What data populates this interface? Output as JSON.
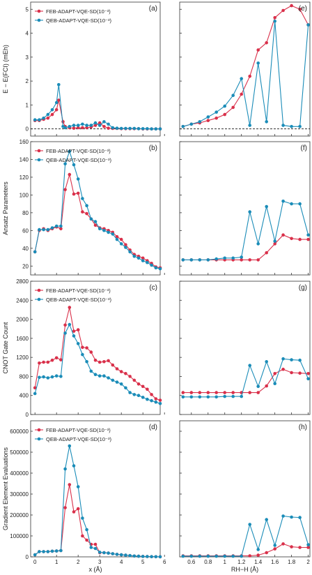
{
  "colors": {
    "feb": "#d9304a",
    "qeb": "#1a8cb8"
  },
  "legend": {
    "feb": "FEB-ADAPT-VQE-SD(10⁻³)",
    "qeb": "QEB-ADAPT-VQE-SD(10⁻³)"
  },
  "labels": {
    "ylabels": [
      "E − E(FCI) (mEh)",
      "Ansatz Parameters",
      "CNOT Gate Count",
      "Gradient Element Evaluations"
    ],
    "xlabel_left": "x (Å)",
    "xlabel_right": "RH−H (Å)",
    "panels_left": [
      "(a)",
      "(b)",
      "(c)",
      "(d)"
    ],
    "panels_right": [
      "(e)",
      "(f)",
      "(g)",
      "(h)"
    ]
  },
  "chart_data": [
    {
      "panel": "(a)",
      "type": "line",
      "xlim": [
        -0.2,
        5.8
      ],
      "ylim": [
        -0.3,
        5.3
      ],
      "yticks": [
        0,
        1,
        2,
        3,
        4,
        5
      ],
      "xticks": [
        0,
        1,
        2,
        3,
        4,
        5,
        6
      ],
      "reference_line": 0,
      "series": [
        {
          "key": "feb",
          "x": [
            0,
            0.2,
            0.4,
            0.6,
            0.8,
            1.0,
            1.1,
            1.3,
            1.4,
            1.6,
            1.8,
            2.0,
            2.2,
            2.4,
            2.6,
            2.8,
            3.0,
            3.2,
            3.4,
            3.6,
            3.8,
            4.0,
            4.2,
            4.4,
            4.6,
            4.8,
            5.0,
            5.2,
            5.4,
            5.6,
            5.8
          ],
          "y": [
            0.35,
            0.35,
            0.4,
            0.45,
            0.6,
            0.8,
            1.2,
            0.3,
            0.1,
            0.05,
            0.03,
            0.05,
            0.05,
            0.05,
            0.08,
            0.15,
            0.25,
            0.1,
            0.03,
            0.02,
            0.02,
            0.01,
            0.01,
            0.01,
            0.01,
            0.01,
            0.0,
            0.0,
            0.0,
            0.0,
            0.0
          ]
        },
        {
          "key": "qeb",
          "x": [
            0,
            0.2,
            0.4,
            0.6,
            0.8,
            1.0,
            1.1,
            1.3,
            1.4,
            1.6,
            1.8,
            2.0,
            2.2,
            2.4,
            2.6,
            2.8,
            3.0,
            3.2,
            3.4,
            3.6,
            3.8,
            4.0,
            4.2,
            4.4,
            4.6,
            4.8,
            5.0,
            5.2,
            5.4,
            5.6,
            5.8
          ],
          "y": [
            0.38,
            0.38,
            0.45,
            0.6,
            0.8,
            1.1,
            1.85,
            0.1,
            0.05,
            0.1,
            0.15,
            0.15,
            0.2,
            0.15,
            0.15,
            0.25,
            0.15,
            0.3,
            0.2,
            0.05,
            0.03,
            0.02,
            0.02,
            0.02,
            0.02,
            0.01,
            0.01,
            0.01,
            0.0,
            0.0,
            0.0
          ]
        }
      ]
    },
    {
      "panel": "(e)",
      "type": "line",
      "xlim": [
        0.46,
        2.02
      ],
      "ylim": [
        -0.3,
        5.3
      ],
      "yticks": [
        0,
        1,
        2,
        3,
        4,
        5
      ],
      "xticks": [
        0.6,
        0.8,
        1.0,
        1.2,
        1.4,
        1.6,
        1.8,
        2.0
      ],
      "reference_line": 0,
      "series": [
        {
          "key": "feb",
          "x": [
            0.5,
            0.6,
            0.7,
            0.8,
            0.9,
            1.0,
            1.1,
            1.2,
            1.3,
            1.4,
            1.5,
            1.6,
            1.7,
            1.8,
            1.9,
            2.0
          ],
          "y": [
            0.1,
            0.2,
            0.25,
            0.35,
            0.45,
            0.6,
            0.9,
            1.45,
            2.2,
            3.3,
            3.6,
            4.65,
            4.95,
            5.15,
            5.0,
            4.35
          ]
        },
        {
          "key": "qeb",
          "x": [
            0.5,
            0.6,
            0.7,
            0.8,
            0.9,
            1.0,
            1.1,
            1.2,
            1.3,
            1.4,
            1.5,
            1.6,
            1.7,
            1.8,
            1.9,
            2.0
          ],
          "y": [
            0.1,
            0.2,
            0.3,
            0.5,
            0.7,
            0.95,
            1.4,
            2.1,
            0.15,
            2.75,
            0.3,
            4.5,
            0.15,
            0.1,
            0.1,
            4.35
          ]
        }
      ]
    },
    {
      "panel": "(b)",
      "type": "line",
      "xlim": [
        -0.2,
        5.8
      ],
      "ylim": [
        10,
        160
      ],
      "yticks": [
        20,
        40,
        60,
        80,
        100,
        120,
        140,
        160
      ],
      "xticks": [
        0,
        1,
        2,
        3,
        4,
        5,
        6
      ],
      "series": [
        {
          "key": "feb",
          "x": [
            0,
            0.2,
            0.4,
            0.6,
            0.8,
            1.0,
            1.2,
            1.4,
            1.6,
            1.8,
            2.0,
            2.2,
            2.4,
            2.6,
            2.8,
            3.0,
            3.2,
            3.4,
            3.6,
            3.8,
            4.0,
            4.2,
            4.4,
            4.6,
            4.8,
            5.0,
            5.2,
            5.4,
            5.6,
            5.8
          ],
          "y": [
            36,
            60,
            62,
            60,
            62,
            64,
            62,
            106,
            123,
            101,
            102,
            81,
            79,
            73,
            66,
            63,
            62,
            60,
            58,
            53,
            50,
            44,
            38,
            33,
            31,
            29,
            26,
            23,
            19,
            18
          ]
        },
        {
          "key": "qeb",
          "x": [
            0,
            0.2,
            0.4,
            0.6,
            0.8,
            1.0,
            1.2,
            1.4,
            1.6,
            1.8,
            2.0,
            2.2,
            2.4,
            2.6,
            2.8,
            3.0,
            3.2,
            3.4,
            3.6,
            3.8,
            4.0,
            4.2,
            4.4,
            4.6,
            4.8,
            5.0,
            5.2,
            5.4,
            5.6,
            5.8
          ],
          "y": [
            36,
            61,
            61,
            61,
            63,
            65,
            65,
            135,
            149,
            134,
            118,
            96,
            88,
            73,
            70,
            62,
            60,
            58,
            56,
            50,
            45,
            41,
            36,
            31,
            29,
            26,
            24,
            21,
            18,
            17
          ]
        }
      ]
    },
    {
      "panel": "(f)",
      "type": "line",
      "xlim": [
        0.46,
        2.02
      ],
      "ylim": [
        10,
        160
      ],
      "yticks": [
        20,
        40,
        60,
        80,
        100,
        120,
        140,
        160
      ],
      "xticks": [
        0.6,
        0.8,
        1.0,
        1.2,
        1.4,
        1.6,
        1.8,
        2.0
      ],
      "series": [
        {
          "key": "feb",
          "x": [
            0.5,
            0.6,
            0.7,
            0.8,
            0.9,
            1.0,
            1.1,
            1.2,
            1.3,
            1.4,
            1.5,
            1.6,
            1.7,
            1.8,
            1.9,
            2.0
          ],
          "y": [
            27,
            27,
            27,
            27,
            27,
            27,
            27,
            27,
            27,
            27,
            35,
            45,
            55,
            51,
            50,
            50
          ]
        },
        {
          "key": "qeb",
          "x": [
            0.5,
            0.6,
            0.7,
            0.8,
            0.9,
            1.0,
            1.1,
            1.2,
            1.3,
            1.4,
            1.5,
            1.6,
            1.7,
            1.8,
            1.9,
            2.0
          ],
          "y": [
            27,
            27,
            27,
            27,
            28,
            29,
            29,
            30,
            81,
            45,
            87,
            48,
            93,
            90,
            90,
            55
          ]
        }
      ]
    },
    {
      "panel": "(c)",
      "type": "line",
      "xlim": [
        -0.2,
        5.8
      ],
      "ylim": [
        0,
        2800
      ],
      "yticks": [
        0,
        400,
        800,
        1200,
        1600,
        2000,
        2400,
        2800
      ],
      "xticks": [
        0,
        1,
        2,
        3,
        4,
        5,
        6
      ],
      "series": [
        {
          "key": "feb",
          "x": [
            0,
            0.2,
            0.4,
            0.6,
            0.8,
            1.0,
            1.2,
            1.4,
            1.6,
            1.8,
            2.0,
            2.2,
            2.4,
            2.6,
            2.8,
            3.0,
            3.2,
            3.4,
            3.6,
            3.8,
            4.0,
            4.2,
            4.4,
            4.6,
            4.8,
            5.0,
            5.2,
            5.4,
            5.6,
            5.8
          ],
          "y": [
            560,
            1080,
            1100,
            1100,
            1140,
            1190,
            1150,
            1880,
            2250,
            1750,
            1780,
            1410,
            1400,
            1310,
            1140,
            1100,
            1110,
            1130,
            1040,
            960,
            900,
            860,
            800,
            720,
            640,
            590,
            530,
            420,
            330,
            300
          ]
        },
        {
          "key": "qeb",
          "x": [
            0,
            0.2,
            0.4,
            0.6,
            0.8,
            1.0,
            1.2,
            1.4,
            1.6,
            1.8,
            2.0,
            2.2,
            2.4,
            2.6,
            2.8,
            3.0,
            3.2,
            3.4,
            3.6,
            3.8,
            4.0,
            4.2,
            4.4,
            4.6,
            4.8,
            5.0,
            5.2,
            5.4,
            5.6,
            5.8
          ],
          "y": [
            440,
            780,
            790,
            770,
            790,
            810,
            800,
            1710,
            1890,
            1650,
            1490,
            1260,
            1110,
            910,
            840,
            810,
            810,
            770,
            720,
            680,
            640,
            560,
            460,
            420,
            400,
            360,
            320,
            290,
            260,
            230
          ]
        }
      ]
    },
    {
      "panel": "(g)",
      "type": "line",
      "xlim": [
        0.46,
        2.02
      ],
      "ylim": [
        0,
        2800
      ],
      "yticks": [
        0,
        400,
        800,
        1200,
        1600,
        2000,
        2400,
        2800
      ],
      "xticks": [
        0.6,
        0.8,
        1.0,
        1.2,
        1.4,
        1.6,
        1.8,
        2.0
      ],
      "series": [
        {
          "key": "feb",
          "x": [
            0.5,
            0.6,
            0.7,
            0.8,
            0.9,
            1.0,
            1.1,
            1.2,
            1.3,
            1.4,
            1.5,
            1.6,
            1.7,
            1.8,
            1.9,
            2.0
          ],
          "y": [
            460,
            460,
            460,
            460,
            460,
            460,
            460,
            460,
            460,
            460,
            600,
            860,
            950,
            880,
            870,
            860
          ]
        },
        {
          "key": "qeb",
          "x": [
            0.5,
            0.6,
            0.7,
            0.8,
            0.9,
            1.0,
            1.1,
            1.2,
            1.3,
            1.4,
            1.5,
            1.6,
            1.7,
            1.8,
            1.9,
            2.0
          ],
          "y": [
            370,
            370,
            370,
            370,
            370,
            380,
            380,
            380,
            1030,
            590,
            1110,
            650,
            1170,
            1150,
            1140,
            750
          ]
        }
      ]
    },
    {
      "panel": "(d)",
      "type": "line",
      "xlim": [
        -0.2,
        5.8
      ],
      "ylim": [
        0,
        650000
      ],
      "yticks": [
        0,
        100000,
        200000,
        300000,
        400000,
        500000,
        600000
      ],
      "xticks": [
        0,
        1,
        2,
        3,
        4,
        5,
        6
      ],
      "series": [
        {
          "key": "feb",
          "x": [
            0,
            0.2,
            0.4,
            0.6,
            0.8,
            1.0,
            1.2,
            1.4,
            1.6,
            1.8,
            2.0,
            2.2,
            2.4,
            2.6,
            2.8,
            3.0,
            3.2,
            3.4,
            3.6,
            3.8,
            4.0,
            4.2,
            4.4,
            4.6,
            4.8,
            5.0,
            5.2,
            5.4,
            5.6,
            5.8
          ],
          "y": [
            10000,
            25000,
            25000,
            25000,
            27000,
            28000,
            30000,
            235000,
            345000,
            215000,
            230000,
            100000,
            80000,
            60000,
            60000,
            20000,
            20000,
            18000,
            15000,
            12000,
            10000,
            8000,
            6000,
            4000,
            3000,
            2000,
            1500,
            1000,
            800,
            500
          ]
        },
        {
          "key": "qeb",
          "x": [
            0,
            0.2,
            0.4,
            0.6,
            0.8,
            1.0,
            1.2,
            1.4,
            1.6,
            1.8,
            2.0,
            2.2,
            2.4,
            2.6,
            2.8,
            3.0,
            3.2,
            3.4,
            3.6,
            3.8,
            4.0,
            4.2,
            4.4,
            4.6,
            4.8,
            5.0,
            5.2,
            5.4,
            5.6,
            5.8
          ],
          "y": [
            10000,
            25000,
            25000,
            25000,
            27000,
            28000,
            30000,
            420000,
            530000,
            435000,
            335000,
            185000,
            130000,
            45000,
            40000,
            22000,
            20000,
            18000,
            15000,
            12000,
            10000,
            8000,
            6000,
            4000,
            3000,
            2000,
            1500,
            1000,
            800,
            500
          ]
        }
      ]
    },
    {
      "panel": "(h)",
      "type": "line",
      "xlim": [
        0.46,
        2.02
      ],
      "ylim": [
        0,
        650000
      ],
      "yticks": [
        0,
        100000,
        200000,
        300000,
        400000,
        500000,
        600000
      ],
      "xticks": [
        0.6,
        0.8,
        1.0,
        1.2,
        1.4,
        1.6,
        1.8,
        2.0
      ],
      "series": [
        {
          "key": "feb",
          "x": [
            0.5,
            0.6,
            0.7,
            0.8,
            0.9,
            1.0,
            1.1,
            1.2,
            1.3,
            1.4,
            1.5,
            1.6,
            1.7,
            1.8,
            1.9,
            2.0
          ],
          "y": [
            5000,
            5000,
            5000,
            5000,
            5000,
            5000,
            5000,
            5000,
            5000,
            8000,
            20000,
            38000,
            62000,
            48000,
            45000,
            45000
          ]
        },
        {
          "key": "qeb",
          "x": [
            0.5,
            0.6,
            0.7,
            0.8,
            0.9,
            1.0,
            1.1,
            1.2,
            1.3,
            1.4,
            1.5,
            1.6,
            1.7,
            1.8,
            1.9,
            2.0
          ],
          "y": [
            3000,
            3000,
            3000,
            3000,
            3000,
            3000,
            3000,
            3000,
            155000,
            35000,
            178000,
            55000,
            195000,
            190000,
            188000,
            58000
          ]
        }
      ]
    }
  ]
}
